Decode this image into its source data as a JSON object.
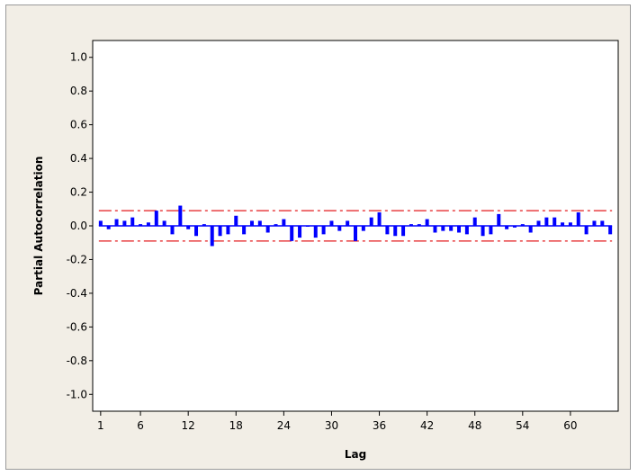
{
  "chart_data": {
    "type": "bar",
    "chart_kind": "partial autocorrelation function",
    "title": "",
    "xlabel": "Lag",
    "ylabel": "Partial Autocorrelation",
    "xlim": [
      0,
      66
    ],
    "ylim": [
      -1.1,
      1.1
    ],
    "x_ticks": [
      1,
      6,
      12,
      18,
      24,
      30,
      36,
      42,
      48,
      54,
      60
    ],
    "y_ticks": [
      1.0,
      0.8,
      0.6,
      0.4,
      0.2,
      0.0,
      -0.2,
      -0.4,
      -0.6,
      -0.8,
      -1.0
    ],
    "y_tick_labels": [
      "1.0",
      "0.8",
      "0.6",
      "0.4",
      "0.2",
      "0.0",
      "-0.2",
      "-0.4",
      "-0.6",
      "-0.8",
      "-1.0"
    ],
    "grid": false,
    "legend": "none",
    "lags": [
      1,
      2,
      3,
      4,
      5,
      6,
      7,
      8,
      9,
      10,
      11,
      12,
      13,
      14,
      15,
      16,
      17,
      18,
      19,
      20,
      21,
      22,
      23,
      24,
      25,
      26,
      27,
      28,
      29,
      30,
      31,
      32,
      33,
      34,
      35,
      36,
      37,
      38,
      39,
      40,
      41,
      42,
      43,
      44,
      45,
      46,
      47,
      48,
      49,
      50,
      51,
      52,
      53,
      54,
      55,
      56,
      57,
      58,
      59,
      60,
      61,
      62,
      63,
      64,
      65
    ],
    "series": [
      {
        "values": [
          0.03,
          -0.02,
          0.04,
          0.03,
          0.05,
          0.01,
          0.02,
          0.09,
          0.03,
          -0.05,
          0.12,
          -0.02,
          -0.06,
          0.01,
          -0.12,
          -0.06,
          -0.05,
          0.06,
          -0.05,
          0.03,
          0.03,
          -0.04,
          0.01,
          0.04,
          -0.09,
          -0.07,
          0.0,
          -0.07,
          -0.05,
          0.03,
          -0.03,
          0.03,
          -0.09,
          -0.03,
          0.05,
          0.08,
          -0.05,
          -0.06,
          -0.06,
          0.01,
          0.01,
          0.04,
          -0.04,
          -0.03,
          -0.03,
          -0.04,
          -0.05,
          0.05,
          -0.06,
          -0.05,
          0.07,
          -0.02,
          -0.01,
          0.01,
          -0.04,
          0.03,
          0.05,
          0.05,
          0.02,
          0.02,
          0.08,
          -0.05,
          0.03,
          0.03,
          -0.05
        ],
        "color": "#0000ff"
      }
    ],
    "significance_limits": {
      "upper": 0.09,
      "lower": -0.09,
      "color": "#e31a1c",
      "style": "dash-dot"
    },
    "zero_line_color": "#0000ff"
  }
}
